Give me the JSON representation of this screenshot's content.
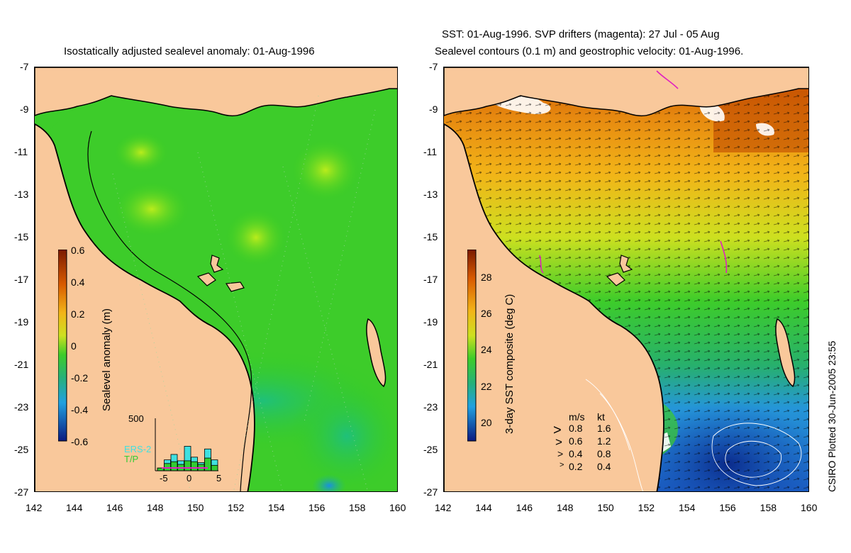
{
  "left_panel": {
    "title": "Isostatically adjusted sealevel anomaly: 01-Aug-1996",
    "colorbar": {
      "label": "Sealevel anomaly (m)",
      "ticks": [
        "0.6",
        "0.4",
        "0.2",
        "0",
        "-0.2",
        "-0.4",
        "-0.6"
      ],
      "range": [
        -0.6,
        0.6
      ]
    },
    "histogram": {
      "top_label": "500",
      "legend": [
        "ERS-2",
        "T/P"
      ],
      "legend_colors": [
        "#40e0e0",
        "#33cc33"
      ],
      "x_ticks": [
        "-5",
        "0",
        "5"
      ],
      "ers2_counts": [
        30,
        120,
        180,
        110,
        270,
        150,
        90,
        240,
        120
      ],
      "tp_counts": [
        30,
        80,
        100,
        70,
        110,
        100,
        70,
        140,
        60
      ]
    }
  },
  "right_panel": {
    "title_line1": "SST: 01-Aug-1996. SVP drifters (magenta): 27 Jul - 05 Aug",
    "title_line2": "Sealevel contours (0.1 m) and geostrophic velocity: 01-Aug-1996.",
    "colorbar": {
      "label": "3-day SST composite (deg C)",
      "ticks": [
        "28",
        "26",
        "24",
        "22",
        "20"
      ],
      "range": [
        19,
        29.5
      ]
    },
    "velocity_key": {
      "header_ms": "m/s",
      "header_kt": "kt",
      "rows": [
        {
          "ms": "0.8",
          "kt": "1.6"
        },
        {
          "ms": "0.6",
          "kt": "1.2"
        },
        {
          "ms": "0.4",
          "kt": "0.8"
        },
        {
          "ms": "0.2",
          "kt": "0.4"
        }
      ]
    }
  },
  "axes": {
    "lat_ticks": [
      "-7",
      "-9",
      "-11",
      "-13",
      "-15",
      "-17",
      "-19",
      "-21",
      "-23",
      "-25",
      "-27"
    ],
    "lon_ticks": [
      "142",
      "144",
      "146",
      "148",
      "150",
      "152",
      "154",
      "156",
      "158",
      "160"
    ],
    "lon_range": [
      142,
      160
    ],
    "lat_range": [
      -27,
      -7
    ]
  },
  "credit": "CSIRO Plotted 30-Jun-2005 23:55",
  "colors": {
    "land": "#f9c89b",
    "sea_anomaly_zero": "#33cc22",
    "coast": "#000000"
  }
}
